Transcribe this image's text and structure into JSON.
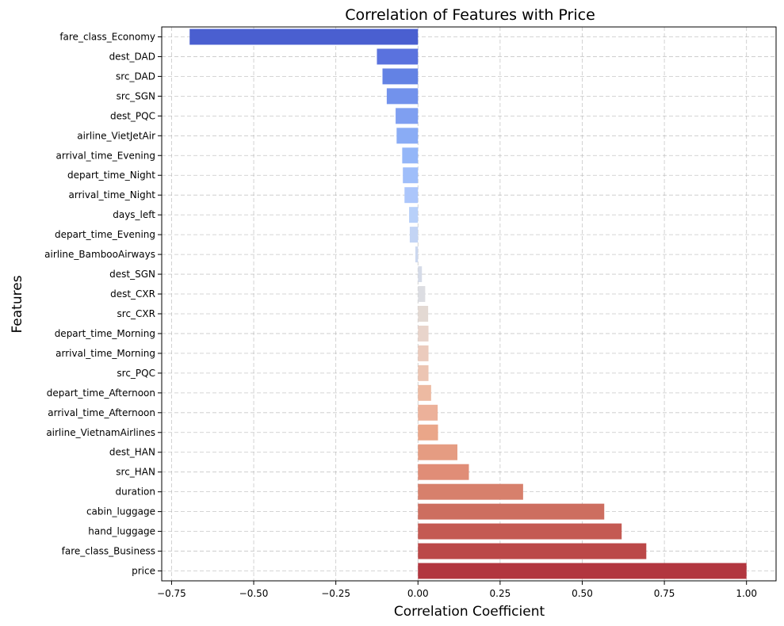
{
  "chart_data": {
    "type": "bar",
    "orientation": "horizontal",
    "title": "Correlation of Features with Price",
    "xlabel": "Correlation Coefficient",
    "ylabel": "Features",
    "xlim": [
      -0.78,
      1.09
    ],
    "xticks": [
      -0.75,
      -0.5,
      -0.25,
      0.0,
      0.25,
      0.5,
      0.75,
      1.0
    ],
    "xtick_labels": [
      "−0.75",
      "−0.50",
      "−0.25",
      "0.00",
      "0.25",
      "0.50",
      "0.75",
      "1.00"
    ],
    "grid": true,
    "colormap": "coolwarm",
    "categories": [
      "fare_class_Economy",
      "dest_DAD",
      "src_DAD",
      "src_SGN",
      "dest_PQC",
      "airline_VietJetAir",
      "arrival_time_Evening",
      "depart_time_Night",
      "arrival_time_Night",
      "days_left",
      "depart_time_Evening",
      "airline_BambooAirways",
      "dest_SGN",
      "dest_CXR",
      "src_CXR",
      "depart_time_Morning",
      "arrival_time_Morning",
      "src_PQC",
      "depart_time_Afternoon",
      "arrival_time_Afternoon",
      "airline_VietnamAirlines",
      "dest_HAN",
      "src_HAN",
      "duration",
      "cabin_luggage",
      "hand_luggage",
      "fare_class_Business",
      "price"
    ],
    "values": [
      -0.695,
      -0.125,
      -0.108,
      -0.095,
      -0.068,
      -0.065,
      -0.048,
      -0.046,
      -0.041,
      -0.027,
      -0.025,
      -0.008,
      0.012,
      0.022,
      0.031,
      0.032,
      0.032,
      0.032,
      0.04,
      0.06,
      0.061,
      0.12,
      0.155,
      0.32,
      0.567,
      0.62,
      0.695,
      1.0
    ],
    "colors": [
      "#4a5fd0",
      "#5a72de",
      "#6382e4",
      "#7292ec",
      "#7f9ff1",
      "#8aacf5",
      "#94b6f8",
      "#9fbefa",
      "#acc6fb",
      "#b8d0f9",
      "#c3d4f4",
      "#ccd8ef",
      "#d5dbe8",
      "#dcdde2",
      "#e3d9d3",
      "#e8d4cb",
      "#ebcbbd",
      "#ecc5b3",
      "#edbaa2",
      "#ecb19a",
      "#eaa689",
      "#e59c82",
      "#e08d77",
      "#d7806c",
      "#cd6e60",
      "#c45a53",
      "#bb4848",
      "#b2363f"
    ]
  }
}
